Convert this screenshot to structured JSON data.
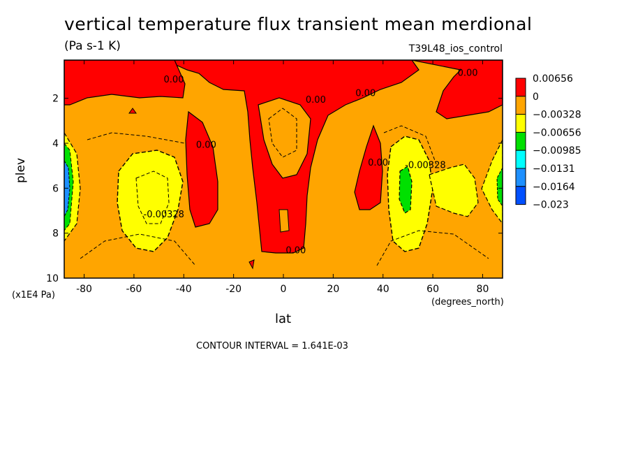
{
  "chart_data": {
    "type": "heatmap",
    "title": "vertical temperature flux transient mean merdional",
    "units": "(Pa s-1 K)",
    "experiment": "T39L48_ios_control",
    "xlabel": "lat",
    "x_unit": "(degrees_north)",
    "ylabel": "plev",
    "y_unit": "(x1E4 Pa)",
    "xlim": [
      -88,
      88
    ],
    "ylim": [
      10,
      0.3
    ],
    "x_ticks": [
      "-80",
      "-60",
      "-40",
      "-20",
      "0",
      "20",
      "40",
      "60",
      "80"
    ],
    "y_ticks": [
      "2",
      "4",
      "6",
      "8",
      "10"
    ],
    "contour_interval_note": "CONTOUR INTERVAL = 1.641E-03",
    "legend": {
      "labels": [
        "0.00656",
        "0",
        "−0.00328",
        "−0.00656",
        "−0.00985",
        "−0.0131",
        "−0.0164",
        "−0.023"
      ],
      "colors": [
        "#ff0000",
        "#ffa500",
        "#ffff00",
        "#00e000",
        "#00ffff",
        "#1e90ff",
        "#0050ff"
      ]
    },
    "contour_labels": [
      {
        "text": "0.00",
        "lat": -44,
        "plev": 1.3
      },
      {
        "text": "0.00",
        "lat": 13,
        "plev": 2.2
      },
      {
        "text": "0.00",
        "lat": 33,
        "plev": 1.9
      },
      {
        "text": "0.00",
        "lat": 74,
        "plev": 1.0
      },
      {
        "text": "0.00",
        "lat": -31,
        "plev": 4.2
      },
      {
        "text": "0.00",
        "lat": 38,
        "plev": 5.0
      },
      {
        "text": "0.00",
        "lat": 5,
        "plev": 8.9
      },
      {
        "text": "-0.00328",
        "lat": -48,
        "plev": 7.3
      },
      {
        "text": "-0.00328",
        "lat": 57,
        "plev": 5.1
      }
    ]
  }
}
